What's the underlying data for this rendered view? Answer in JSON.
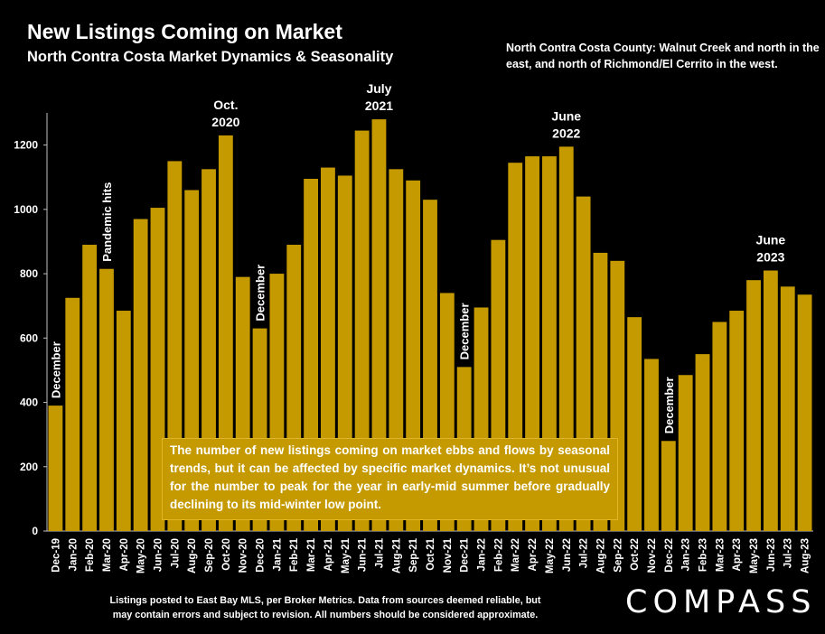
{
  "header": {
    "title": "New Listings Coming on Market",
    "subtitle": "North Contra Costa Market Dynamics & Seasonality",
    "region_note": "North Contra Costa County: Walnut Creek and north in the east, and north of Richmond/El Cerrito in the west."
  },
  "callout": {
    "text": "The number of new listings coming on market ebbs and flows by seasonal trends, but it can be affected by specific market dynamics. It’s not unusual for the number to peak for the year in early-mid summer before gradually declining to its mid-winter low point."
  },
  "footer": {
    "line1": "Listings posted to East Bay MLS, per Broker Metrics.  Data from sources deemed reliable, but",
    "line2": "may contain errors and subject to revision. All numbers should be considered approximate."
  },
  "logo": {
    "text": "COMPASS"
  },
  "chart_data": {
    "type": "bar",
    "title": "New Listings Coming on Market",
    "bar_color": "#c59a00",
    "grid": false,
    "ylim": [
      0,
      1300
    ],
    "yticks": [
      0,
      200,
      400,
      600,
      800,
      1000,
      1200
    ],
    "categories": [
      "Dec-19",
      "Jan-20",
      "Feb-20",
      "Mar-20",
      "Apr-20",
      "May-20",
      "Jun-20",
      "Jul-20",
      "Aug-20",
      "Sep-20",
      "Oct-20",
      "Nov-20",
      "Dec-20",
      "Jan-21",
      "Feb-21",
      "Mar-21",
      "Apr-21",
      "May-21",
      "Jun-21",
      "Jul-21",
      "Aug-21",
      "Sep-21",
      "Oct-21",
      "Nov-21",
      "Dec-21",
      "Jan-22",
      "Feb-22",
      "Mar-22",
      "Apr-22",
      "May-22",
      "Jun-22",
      "Jul-22",
      "Aug-22",
      "Sep-22",
      "Oct-22",
      "Nov-22",
      "Dec-22",
      "Jan-23",
      "Feb-23",
      "Mar-23",
      "Apr-23",
      "May-23",
      "Jun-23",
      "Jul-23",
      "Aug-23"
    ],
    "values": [
      390,
      725,
      890,
      815,
      685,
      970,
      1005,
      1150,
      1060,
      1125,
      1230,
      790,
      630,
      800,
      890,
      1095,
      1130,
      1105,
      1245,
      1280,
      1125,
      1090,
      1030,
      740,
      510,
      695,
      905,
      1145,
      1165,
      1165,
      1195,
      1040,
      865,
      840,
      665,
      535,
      280,
      485,
      550,
      650,
      685,
      780,
      810,
      760,
      735
    ],
    "annotations": [
      {
        "index": 0,
        "lines": [
          "December"
        ],
        "vertical": true
      },
      {
        "index": 3,
        "lines": [
          "Pandemic hits"
        ],
        "vertical": true
      },
      {
        "index": 10,
        "lines": [
          "Oct.",
          "2020"
        ],
        "vertical": false
      },
      {
        "index": 12,
        "lines": [
          "December"
        ],
        "vertical": true
      },
      {
        "index": 19,
        "lines": [
          "July",
          "2021"
        ],
        "vertical": false
      },
      {
        "index": 24,
        "lines": [
          "December"
        ],
        "vertical": true
      },
      {
        "index": 30,
        "lines": [
          "June",
          "2022"
        ],
        "vertical": false
      },
      {
        "index": 36,
        "lines": [
          "December"
        ],
        "vertical": true
      },
      {
        "index": 42,
        "lines": [
          "June",
          "2023"
        ],
        "vertical": false
      }
    ]
  }
}
